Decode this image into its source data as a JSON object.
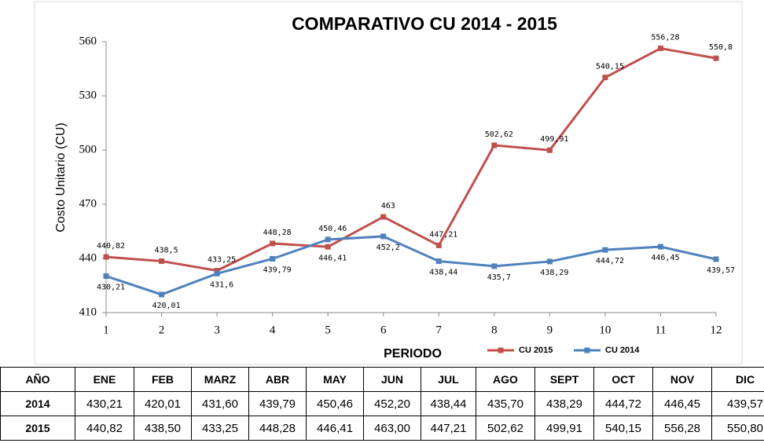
{
  "chart_data": {
    "type": "line",
    "title": "COMPARATIVO  CU   2014 - 2015",
    "x_label": "PERIODO",
    "y_label": "Costo Unitario  (CU)",
    "x": [
      1,
      2,
      3,
      4,
      5,
      6,
      7,
      8,
      9,
      10,
      11,
      12
    ],
    "xlim": [
      1,
      12
    ],
    "xticks": [
      1,
      2,
      3,
      4,
      5,
      6,
      7,
      8,
      9,
      10,
      11,
      12
    ],
    "ylim": [
      410,
      560
    ],
    "yticks": [
      410,
      440,
      470,
      500,
      530,
      560
    ],
    "legend": "bottom-right",
    "series": [
      {
        "name": "CU 2015",
        "color": "#c0504d",
        "values": [
          440.82,
          438.5,
          433.25,
          448.28,
          446.41,
          463,
          447.21,
          502.62,
          499.91,
          540.15,
          556.28,
          550.8
        ],
        "value_labels": [
          "440,82",
          "438,5",
          "433,25",
          "448,28",
          "446,41",
          "463",
          "447,21",
          "502,62",
          "499,91",
          "540,15",
          "556,28",
          "550,8"
        ]
      },
      {
        "name": "CU 2014",
        "color": "#4f81bd",
        "values": [
          430.21,
          420.01,
          431.6,
          439.79,
          450.46,
          452.2,
          438.44,
          435.7,
          438.29,
          444.72,
          446.45,
          439.57
        ],
        "value_labels": [
          "430,21",
          "420,01",
          "431,6",
          "439,79",
          "450,46",
          "452,2",
          "438,44",
          "435,7",
          "438,29",
          "444,72",
          "446,45",
          "439,57"
        ]
      }
    ]
  },
  "table": {
    "header": [
      "AÑO",
      "ENE",
      "FEB",
      "MARZ",
      "ABR",
      "MAY",
      "JUN",
      "JUL",
      "AGO",
      "SEPT",
      "OCT",
      "NOV",
      "DIC"
    ],
    "rows": [
      [
        "2014",
        "430,21",
        "420,01",
        "431,60",
        "439,79",
        "450,46",
        "452,20",
        "438,44",
        "435,70",
        "438,29",
        "444,72",
        "446,45",
        "439,57"
      ],
      [
        "2015",
        "440,82",
        "438,50",
        "433,25",
        "448,28",
        "446,41",
        "463,00",
        "447,21",
        "502,62",
        "499,91",
        "540,15",
        "556,28",
        "550,80"
      ]
    ]
  }
}
